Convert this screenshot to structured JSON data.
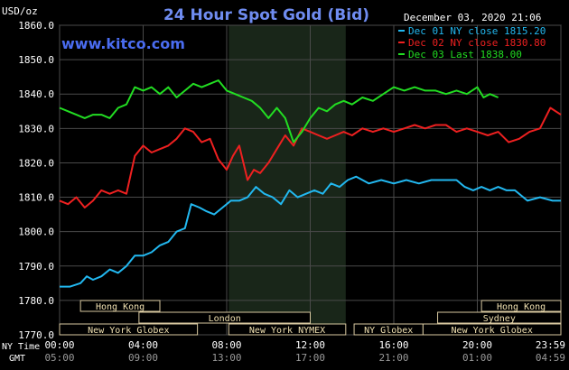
{
  "chart_data": {
    "type": "line",
    "title": "24 Hour Spot Gold (Bid)",
    "watermark": "www.kitco.com",
    "date_label": "December 03, 2020 21:06",
    "y_unit": "USD/oz",
    "ylim": [
      1770,
      1860
    ],
    "y_ticks": [
      "1860.0",
      "1850.0",
      "1840.0",
      "1830.0",
      "1820.0",
      "1810.0",
      "1800.0",
      "1790.0",
      "1780.0",
      "1770.0"
    ],
    "y_tick_values": [
      1860,
      1850,
      1840,
      1830,
      1820,
      1810,
      1800,
      1790,
      1780,
      1770
    ],
    "xlim": [
      0,
      24
    ],
    "x_row_ny_label": "NY Time",
    "x_row_gmt_label": "GMT",
    "x_ticks_ny": [
      "00:00",
      "04:00",
      "08:00",
      "12:00",
      "16:00",
      "20:00",
      "23:59"
    ],
    "x_ticks_gmt": [
      "05:00",
      "09:00",
      "13:00",
      "17:00",
      "21:00",
      "01:00",
      "04:59"
    ],
    "x_tick_hours": [
      0,
      4,
      8,
      12,
      16,
      20,
      24
    ],
    "grid": true,
    "legend_position": "top-right",
    "shaded_period": [
      8.1,
      13.7
    ],
    "background": "#000000",
    "grid_color": "#4a4a4a",
    "title_color": "#6f8cf0",
    "series": [
      {
        "name": "Dec 01 NY close 1815.20",
        "color": "#22b8f0",
        "x": [
          0,
          0.5,
          1,
          1.3,
          1.6,
          2.0,
          2.4,
          2.8,
          3.2,
          3.6,
          4.0,
          4.4,
          4.8,
          5.2,
          5.6,
          6.0,
          6.3,
          6.7,
          7.0,
          7.4,
          7.8,
          8.2,
          8.6,
          9.0,
          9.4,
          9.8,
          10.2,
          10.6,
          11.0,
          11.4,
          11.8,
          12.2,
          12.6,
          13.0,
          13.4,
          13.8,
          14.2,
          14.8,
          15.4,
          16.0,
          16.6,
          17.2,
          17.8,
          18.2,
          18.6,
          19.0,
          19.4,
          19.8,
          20.2,
          20.6,
          21.0,
          21.4,
          21.8,
          22.4,
          23.0,
          23.6,
          24.0
        ],
        "y": [
          1784,
          1784,
          1785,
          1787,
          1786,
          1787,
          1789,
          1788,
          1790,
          1793,
          1793,
          1794,
          1796,
          1797,
          1800,
          1801,
          1808,
          1807,
          1806,
          1805,
          1807,
          1809,
          1809,
          1810,
          1813,
          1811,
          1810,
          1808,
          1812,
          1810,
          1811,
          1812,
          1811,
          1814,
          1813,
          1815,
          1816,
          1814,
          1815,
          1814,
          1815,
          1814,
          1815,
          1815,
          1815,
          1815,
          1813,
          1812,
          1813,
          1812,
          1813,
          1812,
          1812,
          1809,
          1810,
          1809,
          1809
        ]
      },
      {
        "name": "Dec 02 NY close 1830.80",
        "color": "#ee2020",
        "x": [
          0,
          0.4,
          0.8,
          1.2,
          1.6,
          2.0,
          2.4,
          2.8,
          3.2,
          3.6,
          4.0,
          4.4,
          4.8,
          5.2,
          5.6,
          6.0,
          6.4,
          6.8,
          7.2,
          7.6,
          8.0,
          8.3,
          8.6,
          9.0,
          9.3,
          9.6,
          10.0,
          10.4,
          10.8,
          11.2,
          11.6,
          12.0,
          12.4,
          12.8,
          13.2,
          13.6,
          14.0,
          14.5,
          15.0,
          15.5,
          16.0,
          16.5,
          17.0,
          17.5,
          18.0,
          18.5,
          19.0,
          19.5,
          20.0,
          20.5,
          21.0,
          21.5,
          22.0,
          22.5,
          23.0,
          23.5,
          24.0
        ],
        "y": [
          1809,
          1808,
          1810,
          1807,
          1809,
          1812,
          1811,
          1812,
          1811,
          1822,
          1825,
          1823,
          1824,
          1825,
          1827,
          1830,
          1829,
          1826,
          1827,
          1821,
          1818,
          1822,
          1825,
          1815,
          1818,
          1817,
          1820,
          1824,
          1828,
          1825,
          1830,
          1829,
          1828,
          1827,
          1828,
          1829,
          1828,
          1830,
          1829,
          1830,
          1829,
          1830,
          1831,
          1830,
          1831,
          1831,
          1829,
          1830,
          1829,
          1828,
          1829,
          1826,
          1827,
          1829,
          1830,
          1836,
          1834
        ]
      },
      {
        "name": "Dec 03 Last 1838.00",
        "color": "#22dd22",
        "x": [
          0,
          0.4,
          0.8,
          1.2,
          1.6,
          2.0,
          2.4,
          2.8,
          3.2,
          3.6,
          4.0,
          4.4,
          4.8,
          5.2,
          5.6,
          6.0,
          6.4,
          6.8,
          7.2,
          7.6,
          8.0,
          8.4,
          8.8,
          9.2,
          9.6,
          10.0,
          10.4,
          10.8,
          11.2,
          11.6,
          12.0,
          12.4,
          12.8,
          13.2,
          13.6,
          14.0,
          14.5,
          15.0,
          15.5,
          16.0,
          16.5,
          17.0,
          17.5,
          18.0,
          18.5,
          19.0,
          19.5,
          20.0,
          20.3,
          20.6,
          21.0
        ],
        "y": [
          1836,
          1835,
          1834,
          1833,
          1834,
          1834,
          1833,
          1836,
          1837,
          1842,
          1841,
          1842,
          1840,
          1842,
          1839,
          1841,
          1843,
          1842,
          1843,
          1844,
          1841,
          1840,
          1839,
          1838,
          1836,
          1833,
          1836,
          1833,
          1826,
          1829,
          1833,
          1836,
          1835,
          1837,
          1838,
          1837,
          1839,
          1838,
          1840,
          1842,
          1841,
          1842,
          1841,
          1841,
          1840,
          1841,
          1840,
          1842,
          1839,
          1840,
          1839
        ]
      }
    ],
    "sessions": [
      {
        "label": "Hong Kong",
        "start": 1.0,
        "end": 4.8,
        "row": 1
      },
      {
        "label": "London",
        "start": 3.8,
        "end": 12.0,
        "row": 2
      },
      {
        "label": "New York Globex",
        "start": 0.0,
        "end": 6.6,
        "row": 3
      },
      {
        "label": "New York NYMEX",
        "start": 8.1,
        "end": 13.7,
        "row": 3
      },
      {
        "label": "NY Globex",
        "start": 14.1,
        "end": 17.4,
        "row": 3
      },
      {
        "label": "Hong Kong",
        "start": 20.2,
        "end": 24.0,
        "row": 1
      },
      {
        "label": "Sydney",
        "start": 18.1,
        "end": 24.0,
        "row": 2
      },
      {
        "label": "New York Globex",
        "start": 17.4,
        "end": 24.0,
        "row": 3
      }
    ]
  }
}
